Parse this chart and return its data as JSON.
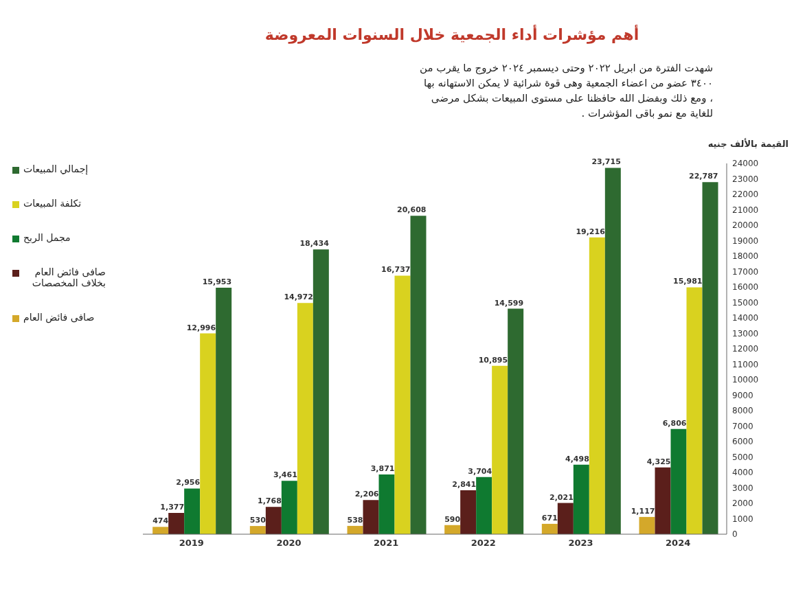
{
  "chart_data": {
    "type": "bar",
    "title": "أهم مؤشرات أداء الجمعية خلال السنوات المعروضة",
    "ylabel": "القيمة بالألف جنيه",
    "annotations": [
      "شهدت الفترة من ابريل ٢٠٢٢ وحتى ديسمبر ٢٠٢٤ خروج ما يقرب من ٣٤٠٠ عضو من اعضاء الجمعية وهى قوة شرائية لا يمكن الاستهانه بها ، ومع ذلك وبفضل الله حافظنا على مستوى المبيعات بشكل مرضى للغاية مع نمو باقى المؤشرات ."
    ],
    "categories": [
      "2019",
      "2020",
      "2021",
      "2022",
      "2023",
      "2024"
    ],
    "series": [
      {
        "name": "صافى فائض العام",
        "color": "#d4a82a",
        "values": [
          474,
          530,
          538,
          590,
          671,
          1117
        ],
        "value_labels": [
          "474",
          "530",
          "538",
          "590",
          "671",
          "1,117"
        ]
      },
      {
        "name": "صافى فائض العام بخلاف المخصصات",
        "color": "#5b1f1b",
        "values": [
          1377,
          1768,
          2206,
          2841,
          2021,
          4325
        ],
        "value_labels": [
          "1,377",
          "1,768",
          "2,206",
          "2,841",
          "2,021",
          "4,325"
        ]
      },
      {
        "name": "مجمل الربح",
        "color": "#0f7a30",
        "values": [
          2956,
          3461,
          3871,
          3704,
          4498,
          6806
        ],
        "value_labels": [
          "2,956",
          "3,461",
          "3,871",
          "3,704",
          "4,498",
          "6,806"
        ]
      },
      {
        "name": "تكلفة المبيعات",
        "color": "#d9d21f",
        "values": [
          12996,
          14972,
          16737,
          10895,
          19216,
          15981
        ],
        "value_labels": [
          "12,996",
          "14,972",
          "16,737",
          "10,895",
          "19,216",
          "15,981"
        ]
      },
      {
        "name": "إجمالي المبيعات",
        "color": "#2e6a30",
        "values": [
          15953,
          18434,
          20608,
          14599,
          23715,
          22787
        ],
        "value_labels": [
          "15,953",
          "18,434",
          "20,608",
          "14,599",
          "23,715",
          "22,787"
        ]
      }
    ],
    "ylim": [
      0,
      24000
    ],
    "yticks": [
      0,
      1000,
      2000,
      3000,
      4000,
      5000,
      6000,
      7000,
      8000,
      9000,
      10000,
      11000,
      12000,
      13000,
      14000,
      15000,
      16000,
      17000,
      18000,
      19000,
      20000,
      21000,
      22000,
      23000,
      24000
    ],
    "legend": "top left"
  }
}
